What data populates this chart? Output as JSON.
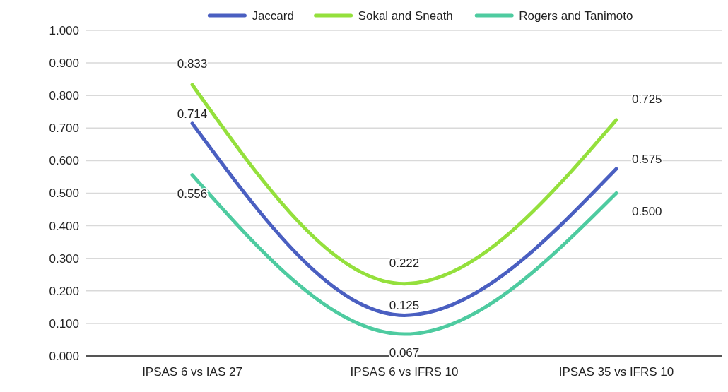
{
  "chart_data": {
    "type": "line",
    "categories": [
      "IPSAS 6 vs IAS 27",
      "IPSAS 6 vs IFRS 10",
      "IPSAS 35 vs IFRS 10"
    ],
    "series": [
      {
        "name": "Jaccard",
        "color": "#4a5fc1",
        "values": [
          0.714,
          0.125,
          0.575
        ],
        "value_labels": [
          "0.714",
          "0.125",
          "0.575"
        ]
      },
      {
        "name": "Sokal and Sneath",
        "color": "#94e03c",
        "values": [
          0.833,
          0.222,
          0.725
        ],
        "value_labels": [
          "0.833",
          "0.222",
          "0.725"
        ]
      },
      {
        "name": "Rogers and Tanimoto",
        "color": "#4ecba0",
        "values": [
          0.556,
          0.067,
          0.5
        ],
        "value_labels": [
          "0.556",
          "0.067",
          "0.500"
        ]
      }
    ],
    "ylim": [
      0,
      1
    ],
    "yticks": [
      {
        "value": 0,
        "label": "0.000"
      },
      {
        "value": 0.1,
        "label": "0.100"
      },
      {
        "value": 0.2,
        "label": "0.200"
      },
      {
        "value": 0.3,
        "label": "0.300"
      },
      {
        "value": 0.4,
        "label": "0.400"
      },
      {
        "value": 0.5,
        "label": "0.500"
      },
      {
        "value": 0.6,
        "label": "0.600"
      },
      {
        "value": 0.7,
        "label": "0.700"
      },
      {
        "value": 0.8,
        "label": "0.800"
      },
      {
        "value": 0.9,
        "label": "0.900"
      },
      {
        "value": 1,
        "label": "1.000"
      }
    ],
    "grid": "y",
    "legend": "top",
    "marker": "none",
    "line_style": "solid"
  }
}
